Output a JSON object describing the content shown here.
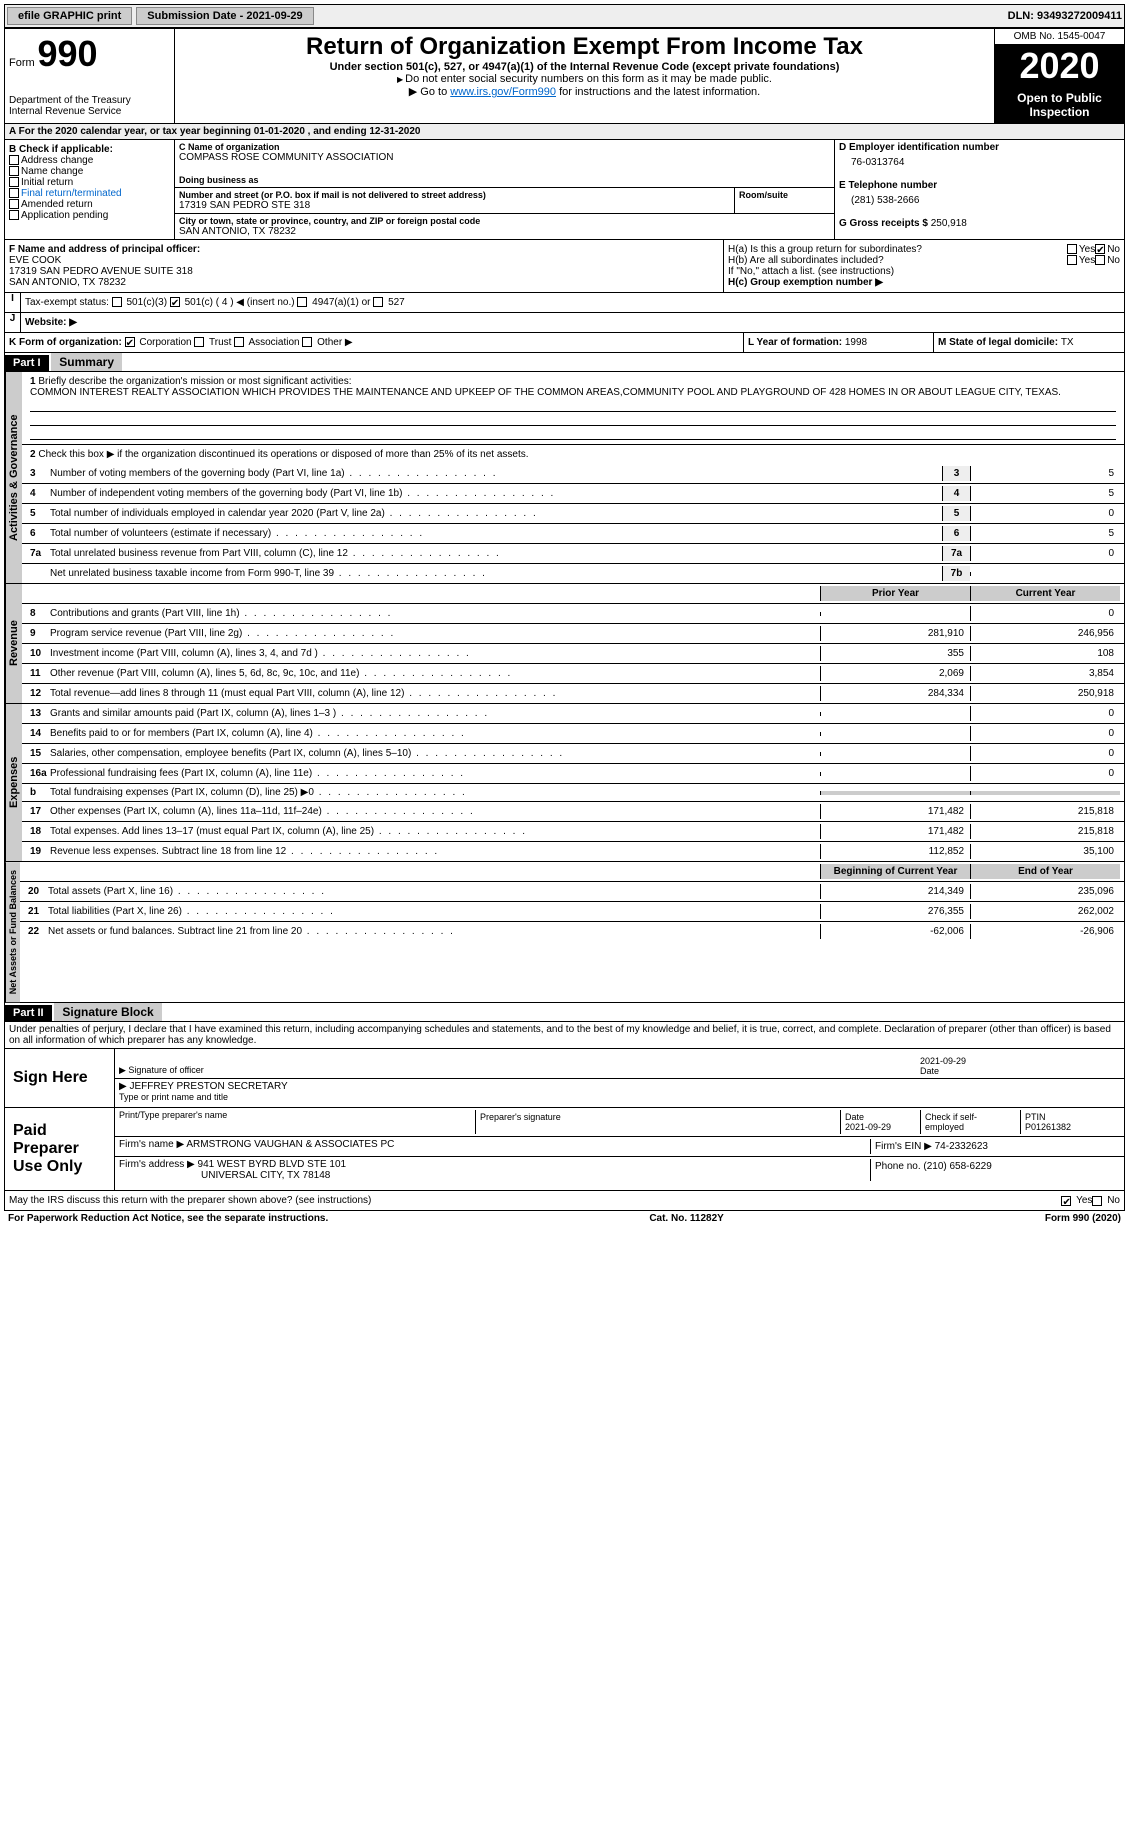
{
  "topbar": {
    "efile": "efile GRAPHIC print",
    "submission_label": "Submission Date - ",
    "submission_date": "2021-09-29",
    "dln_label": "DLN: ",
    "dln": "93493272009411"
  },
  "header": {
    "form_word": "Form",
    "form_number": "990",
    "department": "Department of the Treasury\nInternal Revenue Service",
    "title": "Return of Organization Exempt From Income Tax",
    "subtitle": "Under section 501(c), 527, or 4947(a)(1) of the Internal Revenue Code (except private foundations)",
    "line1": "Do not enter social security numbers on this form as it may be made public.",
    "line2_pre": "Go to ",
    "line2_link": "www.irs.gov/Form990",
    "line2_post": " for instructions and the latest information.",
    "omb": "OMB No. 1545-0047",
    "year": "2020",
    "open_public": "Open to Public Inspection"
  },
  "period": {
    "text": "For the 2020 calendar year, or tax year beginning 01-01-2020    , and ending 12-31-2020"
  },
  "section_b": {
    "label": "B Check if applicable:",
    "items": [
      "Address change",
      "Name change",
      "Initial return",
      "Final return/terminated",
      "Amended return",
      "Application pending"
    ]
  },
  "section_c": {
    "name_label": "C Name of organization",
    "name": "COMPASS ROSE COMMUNITY ASSOCIATION",
    "dba_label": "Doing business as",
    "dba": "",
    "addr_label": "Number and street (or P.O. box if mail is not delivered to street address)",
    "addr": "17319 SAN PEDRO STE 318",
    "room_label": "Room/suite",
    "city_label": "City or town, state or province, country, and ZIP or foreign postal code",
    "city": "SAN ANTONIO, TX  78232"
  },
  "section_d": {
    "label": "D Employer identification number",
    "ein": "76-0313764"
  },
  "section_e": {
    "label": "E Telephone number",
    "phone": "(281) 538-2666"
  },
  "section_g": {
    "label": "G Gross receipts $ ",
    "amount": "250,918"
  },
  "section_f": {
    "label": "F  Name and address of principal officer:",
    "name": "EVE COOK",
    "addr1": "17319 SAN PEDRO AVENUE SUITE 318",
    "addr2": "SAN ANTONIO, TX  78232"
  },
  "section_h": {
    "a_label": "H(a)  Is this a group return for subordinates?",
    "b_label": "H(b)  Are all subordinates included?",
    "b_note": "If \"No,\" attach a list. (see instructions)",
    "c_label": "H(c)  Group exemption number ▶",
    "yes": "Yes",
    "no": "No"
  },
  "tax_exempt": {
    "label": "Tax-exempt status:",
    "opts": [
      "501(c)(3)",
      "501(c) ( 4 ) ◀ (insert no.)",
      "4947(a)(1) or",
      "527"
    ]
  },
  "section_j": {
    "label": "Website: ▶",
    "value": ""
  },
  "section_k": {
    "label": "K Form of organization:",
    "opts": [
      "Corporation",
      "Trust",
      "Association",
      "Other ▶"
    ]
  },
  "section_l": {
    "label": "L Year of formation: ",
    "value": "1998"
  },
  "section_m": {
    "label": "M State of legal domicile: ",
    "value": "TX"
  },
  "part1": {
    "header": "Part I",
    "title": "Summary",
    "q1_label": "1",
    "q1_text": "Briefly describe the organization's mission or most significant activities:",
    "mission": "COMMON INTEREST REALTY ASSOCIATION WHICH PROVIDES THE MAINTENANCE AND UPKEEP OF THE COMMON AREAS,COMMUNITY POOL AND PLAYGROUND OF 428 HOMES IN OR ABOUT LEAGUE CITY, TEXAS.",
    "q2": "Check this box ▶      if the organization discontinued its operations or disposed of more than 25% of its net assets.",
    "governance_label": "Activities & Governance",
    "revenue_label": "Revenue",
    "expenses_label": "Expenses",
    "netassets_label": "Net Assets or Fund Balances",
    "prior_year": "Prior Year",
    "current_year": "Current Year",
    "begin_year": "Beginning of Current Year",
    "end_year": "End of Year",
    "lines_gov": [
      {
        "num": "3",
        "text": "Number of voting members of the governing body (Part VI, line 1a)",
        "box": "3",
        "val": "5"
      },
      {
        "num": "4",
        "text": "Number of independent voting members of the governing body (Part VI, line 1b)",
        "box": "4",
        "val": "5"
      },
      {
        "num": "5",
        "text": "Total number of individuals employed in calendar year 2020 (Part V, line 2a)",
        "box": "5",
        "val": "0"
      },
      {
        "num": "6",
        "text": "Total number of volunteers (estimate if necessary)",
        "box": "6",
        "val": "5"
      },
      {
        "num": "7a",
        "text": "Total unrelated business revenue from Part VIII, column (C), line 12",
        "box": "7a",
        "val": "0"
      },
      {
        "num": "",
        "text": "Net unrelated business taxable income from Form 990-T, line 39",
        "box": "7b",
        "val": ""
      }
    ],
    "lines_rev": [
      {
        "num": "8",
        "text": "Contributions and grants (Part VIII, line 1h)",
        "prior": "",
        "current": "0"
      },
      {
        "num": "9",
        "text": "Program service revenue (Part VIII, line 2g)",
        "prior": "281,910",
        "current": "246,956"
      },
      {
        "num": "10",
        "text": "Investment income (Part VIII, column (A), lines 3, 4, and 7d )",
        "prior": "355",
        "current": "108"
      },
      {
        "num": "11",
        "text": "Other revenue (Part VIII, column (A), lines 5, 6d, 8c, 9c, 10c, and 11e)",
        "prior": "2,069",
        "current": "3,854"
      },
      {
        "num": "12",
        "text": "Total revenue—add lines 8 through 11 (must equal Part VIII, column (A), line 12)",
        "prior": "284,334",
        "current": "250,918"
      }
    ],
    "lines_exp": [
      {
        "num": "13",
        "text": "Grants and similar amounts paid (Part IX, column (A), lines 1–3 )",
        "prior": "",
        "current": "0"
      },
      {
        "num": "14",
        "text": "Benefits paid to or for members (Part IX, column (A), line 4)",
        "prior": "",
        "current": "0"
      },
      {
        "num": "15",
        "text": "Salaries, other compensation, employee benefits (Part IX, column (A), lines 5–10)",
        "prior": "",
        "current": "0"
      },
      {
        "num": "16a",
        "text": "Professional fundraising fees (Part IX, column (A), line 11e)",
        "prior": "",
        "current": "0"
      },
      {
        "num": "b",
        "text": "Total fundraising expenses (Part IX, column (D), line 25) ▶0",
        "prior": "shaded",
        "current": "shaded"
      },
      {
        "num": "17",
        "text": "Other expenses (Part IX, column (A), lines 11a–11d, 11f–24e)",
        "prior": "171,482",
        "current": "215,818"
      },
      {
        "num": "18",
        "text": "Total expenses. Add lines 13–17 (must equal Part IX, column (A), line 25)",
        "prior": "171,482",
        "current": "215,818"
      },
      {
        "num": "19",
        "text": "Revenue less expenses. Subtract line 18 from line 12",
        "prior": "112,852",
        "current": "35,100"
      }
    ],
    "lines_net": [
      {
        "num": "20",
        "text": "Total assets (Part X, line 16)",
        "prior": "214,349",
        "current": "235,096"
      },
      {
        "num": "21",
        "text": "Total liabilities (Part X, line 26)",
        "prior": "276,355",
        "current": "262,002"
      },
      {
        "num": "22",
        "text": "Net assets or fund balances. Subtract line 21 from line 20",
        "prior": "-62,006",
        "current": "-26,906"
      }
    ]
  },
  "part2": {
    "header": "Part II",
    "title": "Signature Block",
    "decl": "Under penalties of perjury, I declare that I have examined this return, including accompanying schedules and statements, and to the best of my knowledge and belief, it is true, correct, and complete. Declaration of preparer (other than officer) is based on all information of which preparer has any knowledge."
  },
  "sign_here": {
    "label": "Sign Here",
    "sig_label": "Signature of officer",
    "date_label": "Date",
    "date": "2021-09-29",
    "name": "JEFFREY PRESTON SECRETARY",
    "name_label": "Type or print name and title"
  },
  "paid_prep": {
    "label": "Paid Preparer Use Only",
    "prep_name_label": "Print/Type preparer's name",
    "prep_sig_label": "Preparer's signature",
    "date_label": "Date",
    "date": "2021-09-29",
    "check_label": "Check       if self-employed",
    "ptin_label": "PTIN",
    "ptin": "P01261382",
    "firm_name_label": "Firm's name    ▶ ",
    "firm_name": "ARMSTRONG VAUGHAN & ASSOCIATES PC",
    "firm_ein_label": "Firm's EIN ▶ ",
    "firm_ein": "74-2332623",
    "firm_addr_label": "Firm's address ▶ ",
    "firm_addr1": "941 WEST BYRD BLVD STE 101",
    "firm_addr2": "UNIVERSAL CITY, TX  78148",
    "phone_label": "Phone no. ",
    "phone": "(210) 658-6229"
  },
  "discuss": {
    "text": "May the IRS discuss this return with the preparer shown above? (see instructions)",
    "yes": "Yes",
    "no": "No"
  },
  "footer": {
    "left": "For Paperwork Reduction Act Notice, see the separate instructions.",
    "mid": "Cat. No. 11282Y",
    "right": "Form 990 (2020)"
  },
  "colors": {
    "link": "#0066cc",
    "shaded": "#cccccc",
    "black": "#000000"
  }
}
